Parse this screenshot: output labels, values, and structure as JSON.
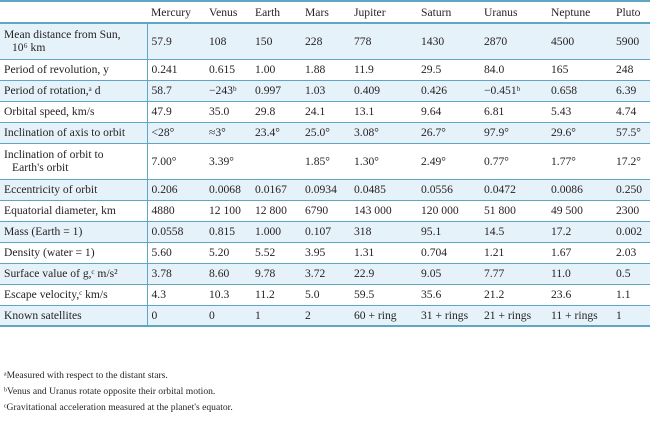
{
  "headers": [
    "",
    "Mercury",
    "Venus",
    "Earth",
    "Mars",
    "Jupiter",
    "Saturn",
    "Uranus",
    "Neptune",
    "Pluto"
  ],
  "rows": [
    {
      "label": "Mean distance from Sun, 10⁶ km",
      "label_l1": "Mean distance from Sun,",
      "label_l2": "10⁶ km",
      "values": [
        "57.9",
        "108",
        "150",
        "228",
        "778",
        "1430",
        "2870",
        "4500",
        "5900"
      ]
    },
    {
      "label": "Period of revolution, y",
      "values": [
        "0.241",
        "0.615",
        "1.00",
        "1.88",
        "11.9",
        "29.5",
        "84.0",
        "165",
        "248"
      ]
    },
    {
      "label": "Period of rotation,ᵃ d",
      "values": [
        "58.7",
        "−243ᵇ",
        "0.997",
        "1.03",
        "0.409",
        "0.426",
        "−0.451ᵇ",
        "0.658",
        "6.39"
      ]
    },
    {
      "label": "Orbital speed, km/s",
      "values": [
        "47.9",
        "35.0",
        "29.8",
        "24.1",
        "13.1",
        "9.64",
        "6.81",
        "5.43",
        "4.74"
      ]
    },
    {
      "label": "Inclination of axis to orbit",
      "values": [
        "<28°",
        "≈3°",
        "23.4°",
        "25.0°",
        "3.08°",
        "26.7°",
        "97.9°",
        "29.6°",
        "57.5°"
      ]
    },
    {
      "label": "Inclination of orbit to Earth's orbit",
      "label_l1": "Inclination of orbit to",
      "label_l2": "Earth's orbit",
      "values": [
        "7.00°",
        "3.39°",
        "",
        "1.85°",
        "1.30°",
        "2.49°",
        "0.77°",
        "1.77°",
        "17.2°"
      ]
    },
    {
      "label": "Eccentricity of orbit",
      "values": [
        "0.206",
        "0.0068",
        "0.0167",
        "0.0934",
        "0.0485",
        "0.0556",
        "0.0472",
        "0.0086",
        "0.250"
      ]
    },
    {
      "label": "Equatorial diameter, km",
      "values": [
        "4880",
        "12 100",
        "12 800",
        "6790",
        "143 000",
        "120 000",
        "51 800",
        "49 500",
        "2300"
      ]
    },
    {
      "label": "Mass (Earth = 1)",
      "values": [
        "0.0558",
        "0.815",
        "1.000",
        "0.107",
        "318",
        "95.1",
        "14.5",
        "17.2",
        "0.002"
      ]
    },
    {
      "label": "Density (water = 1)",
      "values": [
        "5.60",
        "5.20",
        "5.52",
        "3.95",
        "1.31",
        "0.704",
        "1.21",
        "1.67",
        "2.03"
      ]
    },
    {
      "label": "Surface value of g,ᶜ m/s²",
      "values": [
        "3.78",
        "8.60",
        "9.78",
        "3.72",
        "22.9",
        "9.05",
        "7.77",
        "11.0",
        "0.5"
      ]
    },
    {
      "label": "Escape velocity,ᶜ km/s",
      "values": [
        "4.3",
        "10.3",
        "11.2",
        "5.0",
        "59.5",
        "35.6",
        "21.2",
        "23.6",
        "1.1"
      ]
    },
    {
      "label": "Known satellites",
      "values": [
        "0",
        "0",
        "1",
        "2",
        "60 + ring",
        "31 + rings",
        "21 + rings",
        "11 + rings",
        "1"
      ]
    }
  ],
  "footnotes": [
    "ᵃMeasured with respect to the distant stars.",
    "ᵇVenus and Uranus rotate opposite their orbital motion.",
    "ᶜGravitational acceleration measured at the planet's equator."
  ],
  "colors": {
    "rule": "#5fa6c4",
    "tint": "#e6f2fa",
    "text": "#231f20"
  }
}
